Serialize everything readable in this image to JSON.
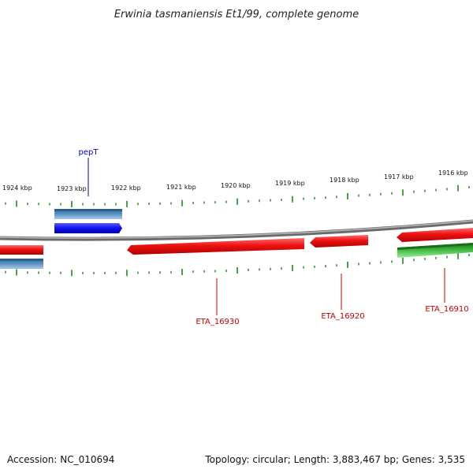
{
  "title": "Erwinia tasmaniensis Et1/99, complete genome",
  "footer": {
    "accession": "Accession: NC_010694",
    "summary": "Topology: circular; Length: 3,883,467 bp; Genes: 3,535"
  },
  "colors": {
    "backbone": "#8a8a8a",
    "tick": "#1f8a1f",
    "red_gene": "#ee1111",
    "blue_gene": "#1010ee",
    "steel_gene": "#3f7fb5",
    "green_gene": "#33aa33",
    "red_label": "#cc0000",
    "blue_label": "#0000cc"
  },
  "scale_labels": [
    "1924 kbp",
    "1923 kbp",
    "1922 kbp",
    "1921 kbp",
    "1920 kbp",
    "1919 kbp",
    "1918 kbp",
    "1917 kbp",
    "1916 kbp"
  ],
  "gene_labels": [
    {
      "name": "pepT",
      "color": "blue"
    },
    {
      "name": "ETA_16930",
      "color": "red"
    },
    {
      "name": "ETA_16920",
      "color": "red"
    },
    {
      "name": "ETA_16910",
      "color": "red"
    }
  ]
}
